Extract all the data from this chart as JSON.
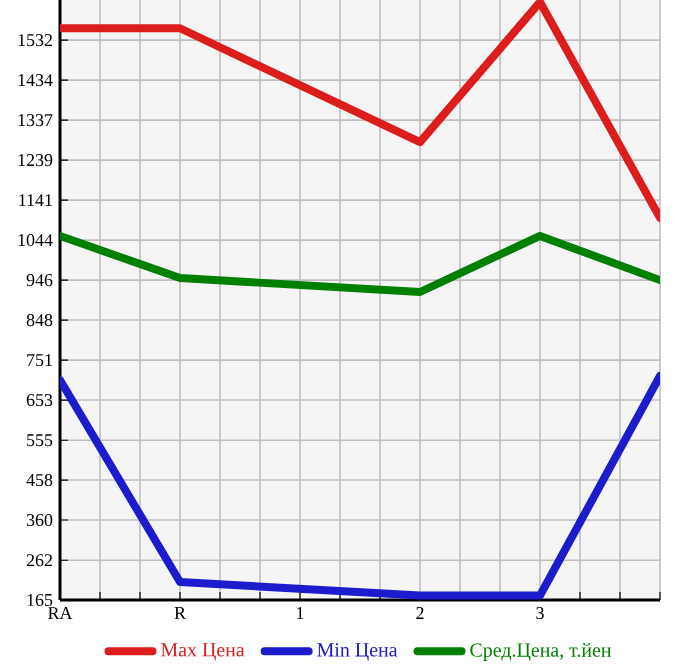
{
  "chart_data": {
    "type": "line",
    "categories": [
      "RA",
      "R",
      "1",
      "2",
      "3",
      null
    ],
    "series": [
      {
        "name": "Max Цена",
        "color": "#dd1c1c",
        "values": [
          1561,
          1561,
          null,
          1283,
          1625,
          1098
        ]
      },
      {
        "name": "Min Цена",
        "color": "#1c1ccc",
        "values": [
          702,
          209,
          null,
          176,
          176,
          712
        ]
      },
      {
        "name": "Сред.Цена, т.йен",
        "color": "#007f00",
        "values": [
          1054,
          951,
          null,
          917,
          1054,
          946
        ]
      }
    ],
    "ylim": [
      165,
      1630
    ],
    "yticks": [
      165,
      262,
      {
        "value": 360.3,
        "label": "360"
      },
      {
        "value": 457.9,
        "label": "458"
      },
      555,
      {
        "value": 653.2,
        "label": "653"
      },
      {
        "value": 750.8,
        "label": "751"
      },
      {
        "value": 848.5,
        "label": "848"
      },
      {
        "value": 946.1,
        "label": "946"
      },
      {
        "value": 1043.8,
        "label": "1044"
      },
      {
        "value": 1141.4,
        "label": "1141"
      },
      {
        "value": 1239.1,
        "label": "1239"
      },
      {
        "value": 1336.7,
        "label": "1337"
      },
      {
        "value": 1434.4,
        "label": "1434"
      },
      1532
    ],
    "grid": true,
    "legend": "bottom",
    "marker": "none",
    "line_style": "solid"
  }
}
